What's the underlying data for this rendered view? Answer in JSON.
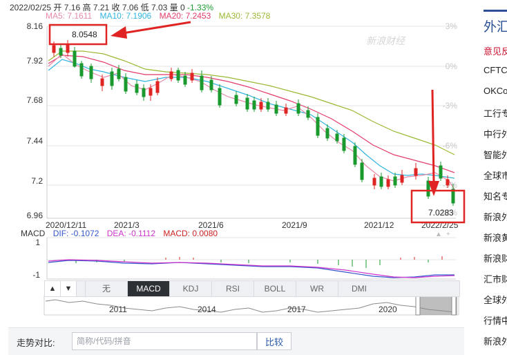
{
  "quote": {
    "date": "2022/02/25",
    "open_label": "开",
    "open": "7.16",
    "high_label": "高",
    "high": "7.21",
    "close_label": "收",
    "close": "7.06",
    "low_label": "低",
    "low": "7.03",
    "volume_label": "量",
    "volume": "0",
    "change": "-1.33%"
  },
  "ma": {
    "ma5": "MA5: 7.1611",
    "ma10": "MA10: 7.1906",
    "ma20": "MA20: 7.2453",
    "ma30": "MA30: 7.3578",
    "colors": {
      "ma5": "#e78aa8",
      "ma10": "#31b5e0",
      "ma20": "#e43b6b",
      "ma30": "#9ab832"
    }
  },
  "watermark": "新浪财经",
  "annotations": {
    "high_value": "8.0548",
    "low_value": "7.0283",
    "box_color": "#e02424"
  },
  "chart_data": {
    "type": "candlestick",
    "y_ticks": [
      "8.16",
      "7.92",
      "7.68",
      "7.44",
      "7.2",
      "6.96"
    ],
    "right_ticks": [
      "3%",
      "0%",
      "-3%",
      "-6%",
      "-9%",
      "-12%"
    ],
    "x_ticks": [
      "2020/12/11",
      "2021/3",
      "2021/6",
      "2021/9",
      "2021/12",
      "2022/2/25"
    ],
    "ylim": [
      6.96,
      8.16
    ],
    "up_color": "#e02424",
    "down_color": "#1a9a2e"
  },
  "macd": {
    "label": "MACD",
    "dif": "DIF: -0.1072",
    "dea": "DEA: -0.1112",
    "macd": "MACD: 0.0080",
    "ticks": [
      "1",
      "-1"
    ],
    "colors": {
      "dif": "#3355cc",
      "dea": "#cc33cc",
      "macd": "#cc2222"
    }
  },
  "indicator_tabs": {
    "prev_arrow": "▲",
    "next_arrow": "▼",
    "items": [
      "无",
      "MACD",
      "KDJ",
      "RSI",
      "BOLL",
      "WR",
      "DMI"
    ],
    "active": "MACD"
  },
  "navigator": {
    "years": [
      "2011",
      "2014",
      "2017",
      "2020"
    ]
  },
  "compare": {
    "label": "走势对比:",
    "placeholder": "简称/代码/拼音",
    "button": "比较"
  },
  "sidebar": {
    "title": "外汇",
    "links": [
      {
        "text": "意见反",
        "red": true
      },
      {
        "text": "CFTC",
        "red": false
      },
      {
        "text": "OKCo",
        "red": false
      },
      {
        "text": "工行专",
        "red": false
      },
      {
        "text": "中行外",
        "red": false
      },
      {
        "text": "智能外",
        "red": false
      },
      {
        "text": "全球市",
        "red": false
      },
      {
        "text": "知名专",
        "red": false
      },
      {
        "text": "新浪外",
        "red": false
      },
      {
        "text": "新浪黄",
        "red": false
      },
      {
        "text": "新浪财",
        "red": false
      },
      {
        "text": "汇市财",
        "red": false
      },
      {
        "text": "全球外",
        "red": false
      },
      {
        "text": "行情中",
        "red": false
      },
      {
        "text": "新浪外",
        "red": false
      }
    ]
  }
}
